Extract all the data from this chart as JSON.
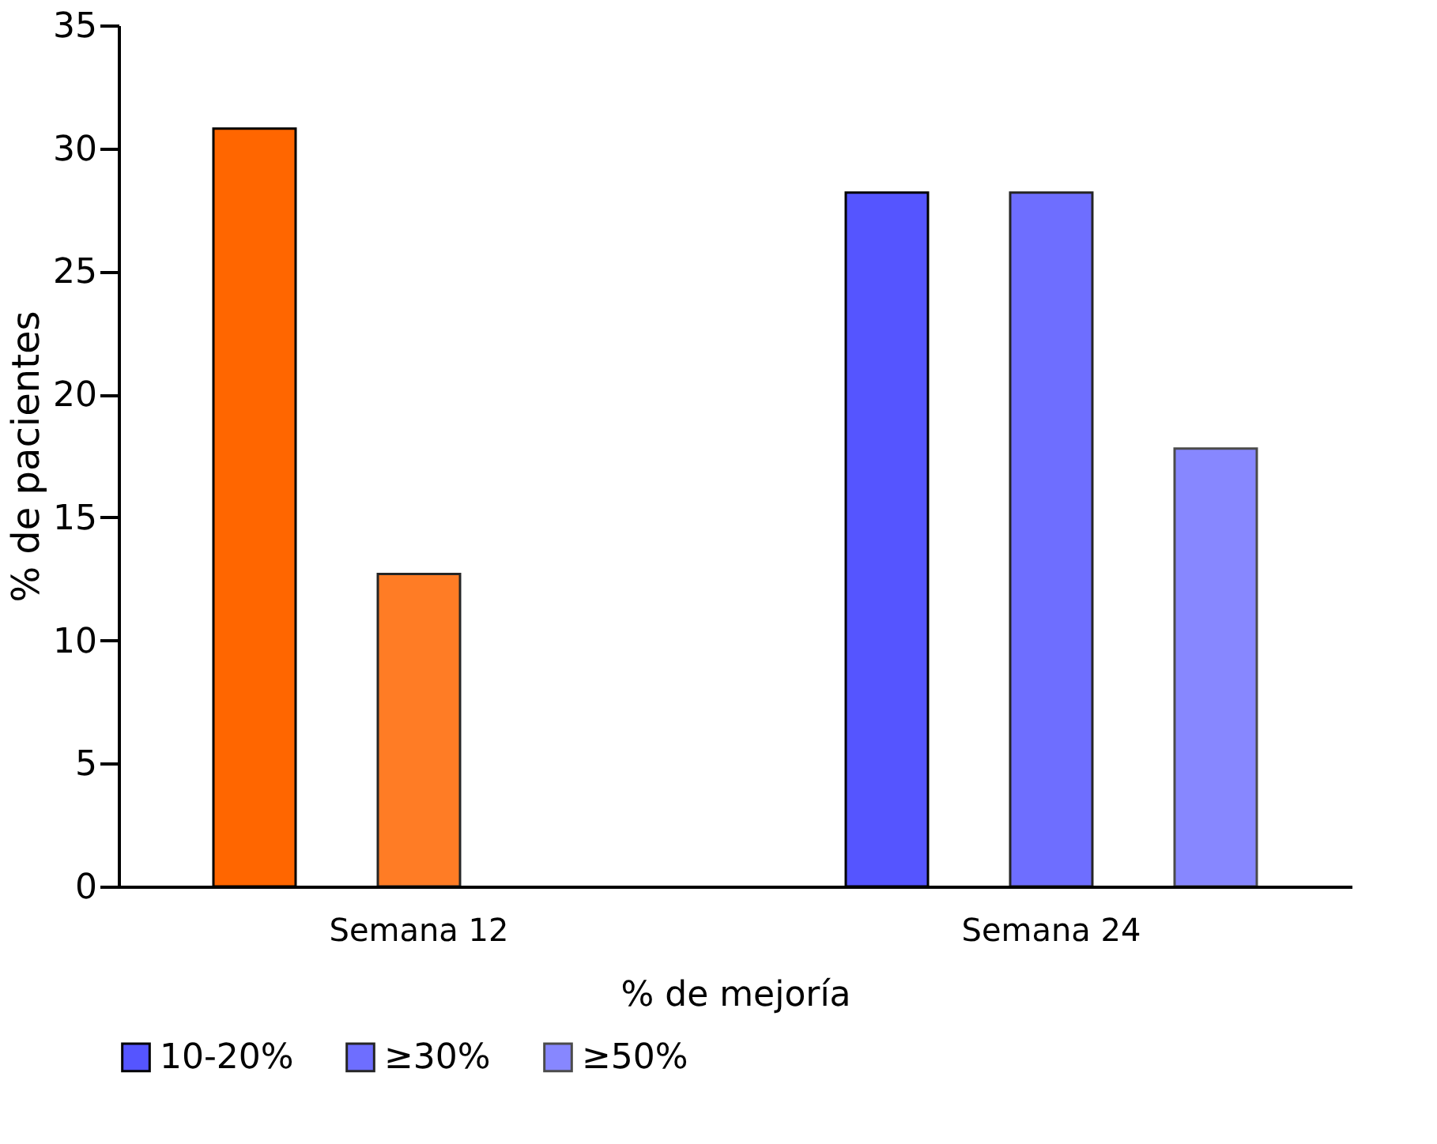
{
  "chart_data": {
    "type": "bar",
    "xlabel": "% de mejoría",
    "ylabel": "% de pacientes",
    "categories": [
      "Semana 12",
      "Semana 24"
    ],
    "series": [
      {
        "name": "10-20%",
        "colors": [
          "#ff6600",
          "#5555ff"
        ],
        "values": [
          30.8,
          28.2
        ]
      },
      {
        "name": "≥30%",
        "colors": [
          "#ff6600",
          "#5555ff"
        ],
        "values": [
          12.7,
          28.2
        ]
      },
      {
        "name": "≥50%",
        "colors": [
          "#ff6600",
          "#5555ff"
        ],
        "values": [
          null,
          17.8
        ]
      }
    ],
    "ylim": [
      0,
      35
    ],
    "yticks": [
      0,
      5,
      10,
      15,
      20,
      25,
      30,
      35
    ],
    "grid": false,
    "legend": "bottom"
  }
}
